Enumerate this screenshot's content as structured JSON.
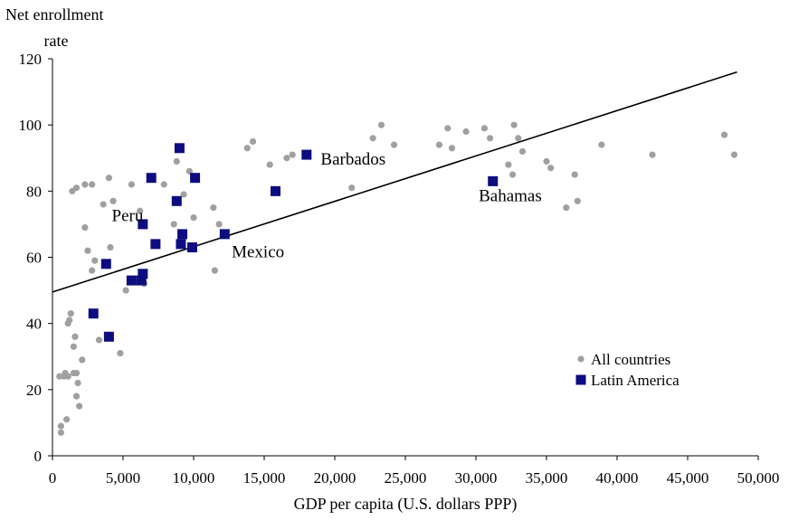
{
  "chart_data": {
    "type": "scatter",
    "title": "",
    "ylabel_lines": [
      "Net enrollment",
      "rate"
    ],
    "xlabel": "GDP per capita (U.S. dollars PPP)",
    "xlim": [
      0,
      50000
    ],
    "ylim": [
      0,
      120
    ],
    "xticks": [
      0,
      5000,
      10000,
      15000,
      20000,
      25000,
      30000,
      35000,
      40000,
      45000,
      50000
    ],
    "xtick_labels": [
      "0",
      "5,000",
      "10,000",
      "15,000",
      "20,000",
      "25,000",
      "30,000",
      "35,000",
      "40,000",
      "45,000",
      "50,000"
    ],
    "yticks": [
      0,
      20,
      40,
      60,
      80,
      100,
      120
    ],
    "ytick_labels": [
      "0",
      "20",
      "40",
      "60",
      "80",
      "100",
      "120"
    ],
    "grid": false,
    "legend": "bottom-right",
    "series": [
      {
        "name": "All countries",
        "marker": "circle",
        "color": "#a0a0a0",
        "points": [
          [
            600,
            7
          ],
          [
            600,
            9
          ],
          [
            500,
            24
          ],
          [
            800,
            24
          ],
          [
            900,
            25
          ],
          [
            1100,
            24
          ],
          [
            1000,
            11
          ],
          [
            1100,
            40
          ],
          [
            1200,
            41
          ],
          [
            1300,
            43
          ],
          [
            1500,
            33
          ],
          [
            1500,
            25
          ],
          [
            1700,
            25
          ],
          [
            1700,
            18
          ],
          [
            1800,
            22
          ],
          [
            1900,
            15
          ],
          [
            1600,
            36
          ],
          [
            2100,
            29
          ],
          [
            1400,
            80
          ],
          [
            1700,
            81
          ],
          [
            2300,
            82
          ],
          [
            2800,
            82
          ],
          [
            2300,
            69
          ],
          [
            2500,
            62
          ],
          [
            2800,
            56
          ],
          [
            3000,
            59
          ],
          [
            3600,
            76
          ],
          [
            4000,
            84
          ],
          [
            4100,
            63
          ],
          [
            4300,
            77
          ],
          [
            3300,
            35
          ],
          [
            4800,
            31
          ],
          [
            5200,
            50
          ],
          [
            5600,
            82
          ],
          [
            6200,
            74
          ],
          [
            6500,
            52
          ],
          [
            7900,
            82
          ],
          [
            8600,
            70
          ],
          [
            8800,
            89
          ],
          [
            9300,
            79
          ],
          [
            9700,
            86
          ],
          [
            10000,
            72
          ],
          [
            11400,
            75
          ],
          [
            11800,
            70
          ],
          [
            11500,
            56
          ],
          [
            13800,
            93
          ],
          [
            14200,
            95
          ],
          [
            15400,
            88
          ],
          [
            16600,
            90
          ],
          [
            17000,
            91
          ],
          [
            21200,
            81
          ],
          [
            22700,
            96
          ],
          [
            23300,
            100
          ],
          [
            24200,
            94
          ],
          [
            27400,
            94
          ],
          [
            28000,
            99
          ],
          [
            28300,
            93
          ],
          [
            29300,
            98
          ],
          [
            30600,
            99
          ],
          [
            31000,
            96
          ],
          [
            32300,
            88
          ],
          [
            32600,
            85
          ],
          [
            32700,
            100
          ],
          [
            33000,
            96
          ],
          [
            33300,
            92
          ],
          [
            35000,
            89
          ],
          [
            35300,
            87
          ],
          [
            36400,
            75
          ],
          [
            37000,
            85
          ],
          [
            37200,
            77
          ],
          [
            38900,
            94
          ],
          [
            42500,
            91
          ],
          [
            47600,
            97
          ],
          [
            48300,
            91
          ]
        ]
      },
      {
        "name": "Latin America",
        "marker": "square",
        "color": "#0d0d80",
        "points": [
          [
            2900,
            43
          ],
          [
            3800,
            58
          ],
          [
            4000,
            36
          ],
          [
            5600,
            53
          ],
          [
            6300,
            53
          ],
          [
            6400,
            55
          ],
          [
            6400,
            70
          ],
          [
            7000,
            84
          ],
          [
            7300,
            64
          ],
          [
            8800,
            77
          ],
          [
            9000,
            93
          ],
          [
            9200,
            67
          ],
          [
            9100,
            64
          ],
          [
            9900,
            63
          ],
          [
            10100,
            84
          ],
          [
            12200,
            67
          ],
          [
            15800,
            80
          ],
          [
            18000,
            91
          ],
          [
            31200,
            83
          ]
        ]
      }
    ],
    "trendline": {
      "x": [
        0,
        48500
      ],
      "y": [
        49.5,
        116
      ]
    },
    "annotations": [
      {
        "text": "Peru",
        "x": 4200,
        "y": 71
      },
      {
        "text": "Barbados",
        "x": 19000,
        "y": 88
      },
      {
        "text": "Mexico",
        "x": 12700,
        "y": 60
      },
      {
        "text": "Bahamas",
        "x": 30200,
        "y": 77
      }
    ]
  }
}
